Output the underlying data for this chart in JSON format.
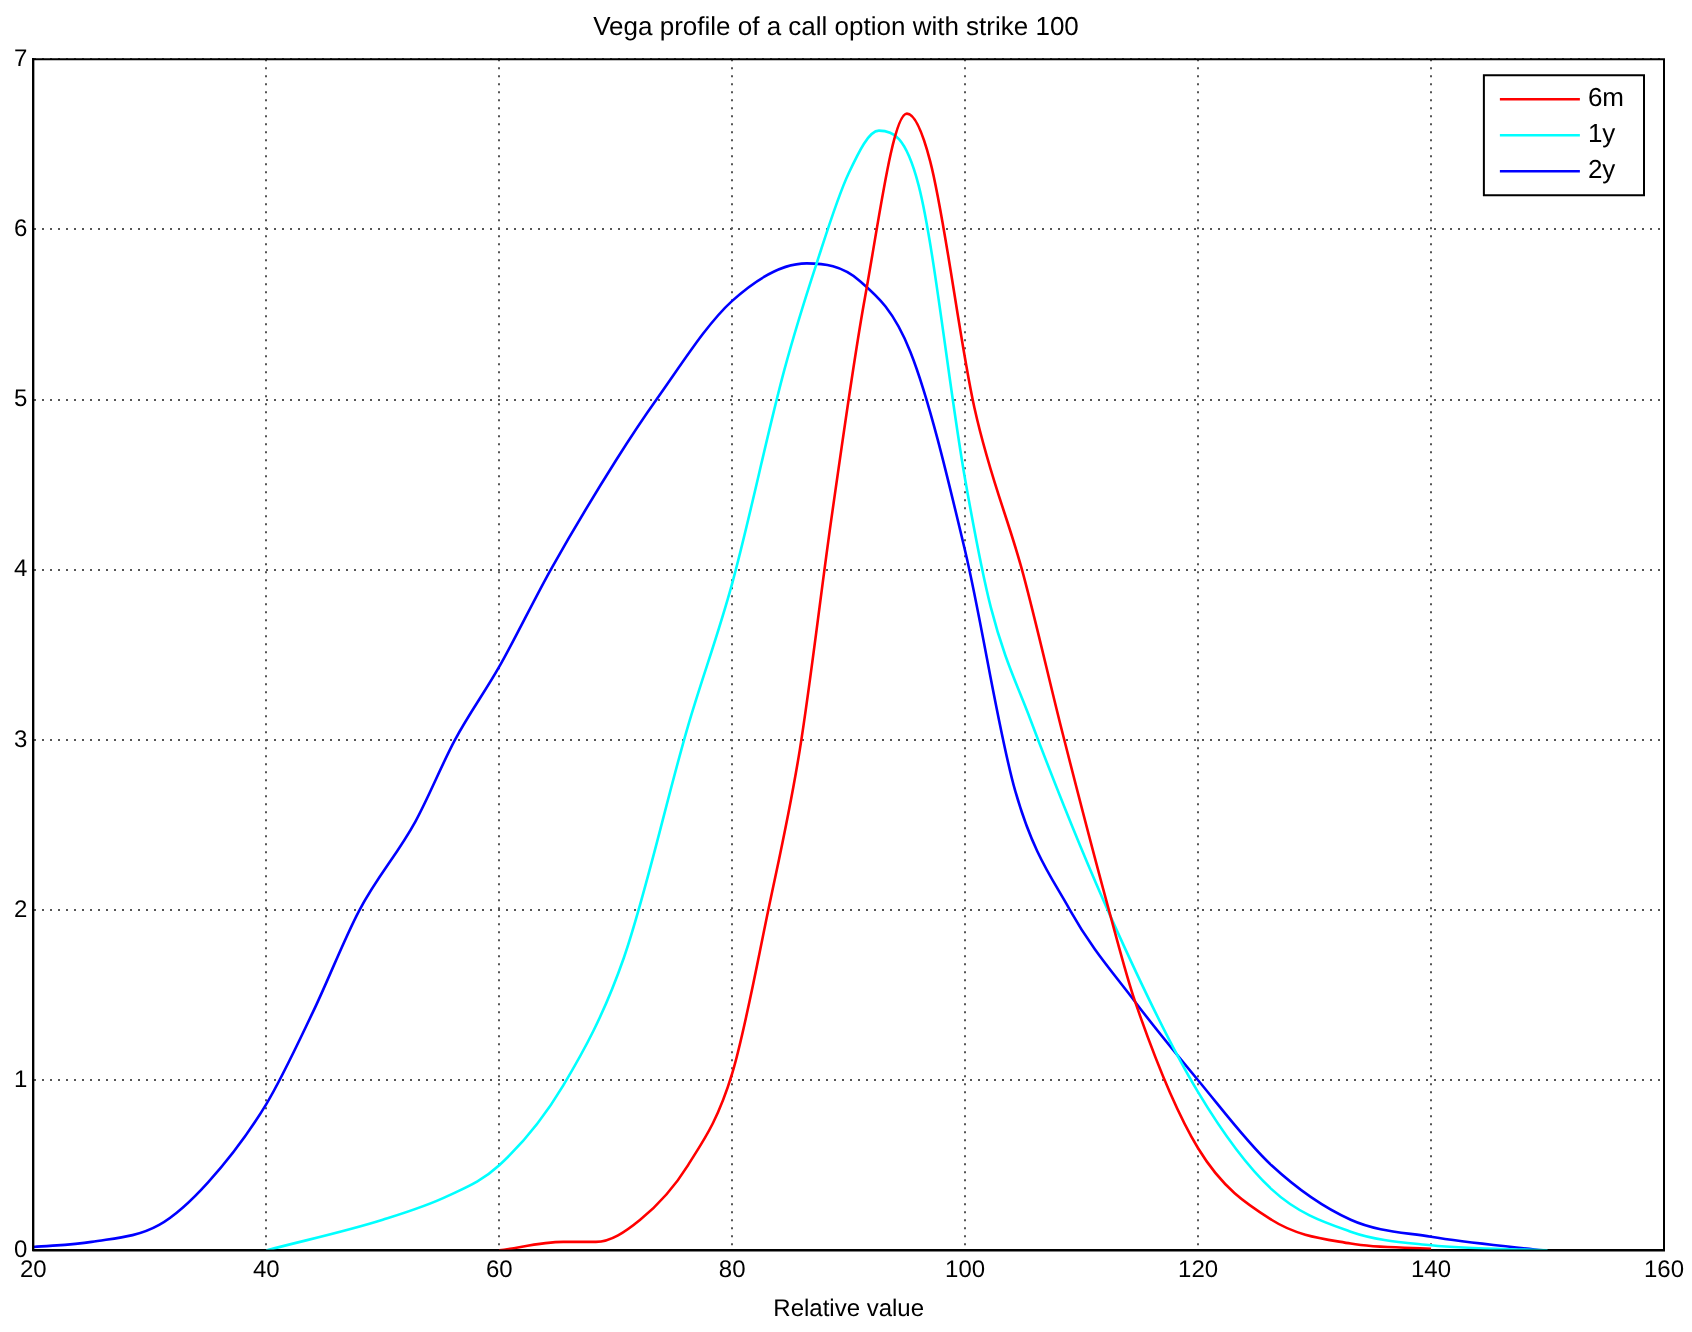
{
  "chart_data": {
    "type": "line",
    "title": "Vega profile of a call option with strike 100",
    "xlabel": "Relative value",
    "xlim": [
      20,
      160
    ],
    "xticks": [
      20,
      40,
      60,
      80,
      100,
      120,
      140,
      160
    ],
    "ylim": [
      0,
      7
    ],
    "yticks": [
      0,
      1,
      2,
      3,
      4,
      5,
      6,
      7
    ],
    "grid": true,
    "legend": "top right",
    "marker": "none",
    "line_style": "solid",
    "series": [
      {
        "name": "6m",
        "color": "#ff0000",
        "x": [
          60,
          65.5,
          68.3,
          72.1,
          76.2,
          80,
          83.1,
          85.8,
          88.6,
          91.4,
          95,
          97,
          100.8,
          105,
          108.4,
          112.5,
          114.6,
          120,
          126.3,
          133.1,
          140
        ],
        "values": [
          0,
          0.05,
          0.05,
          0.18,
          0.5,
          1.04,
          2.0,
          2.94,
          4.34,
          5.6,
          6.68,
          6.4,
          4.95,
          3.97,
          3.03,
          1.96,
          1.46,
          0.6,
          0.18,
          0.04,
          0.01
        ]
      },
      {
        "name": "1y",
        "color": "#00ffff",
        "x": [
          40,
          50,
          55.6,
          60,
          65.5,
          70.7,
          76.2,
          80,
          84.5,
          87.2,
          90,
          92.6,
          96,
          100,
          102.2,
          105.6,
          112.5,
          120,
          126.3,
          133.1,
          140,
          150
        ],
        "values": [
          0,
          0.18,
          0.32,
          0.5,
          0.97,
          1.72,
          3.08,
          3.92,
          5.18,
          5.79,
          6.33,
          6.58,
          6.26,
          4.53,
          3.78,
          3.12,
          1.96,
          0.93,
          0.36,
          0.11,
          0.03,
          0
        ]
      },
      {
        "name": "2y",
        "color": "#0000ff",
        "x": [
          20,
          25,
          30.8,
          35,
          40,
          44,
          48,
          52.8,
          56.2,
          60,
          64.5,
          70,
          73.5,
          80,
          86.4,
          90.9,
          95.3,
          100,
          104.3,
          109,
          114.6,
          120,
          126.3,
          133.1,
          140,
          149.6
        ],
        "values": [
          0.02,
          0.05,
          0.15,
          0.4,
          0.86,
          1.4,
          2.0,
          2.52,
          3.0,
          3.43,
          4.01,
          4.64,
          5.0,
          5.58,
          5.8,
          5.7,
          5.28,
          4.11,
          2.7,
          2.0,
          1.46,
          1.0,
          0.5,
          0.18,
          0.08,
          0
        ]
      }
    ]
  }
}
